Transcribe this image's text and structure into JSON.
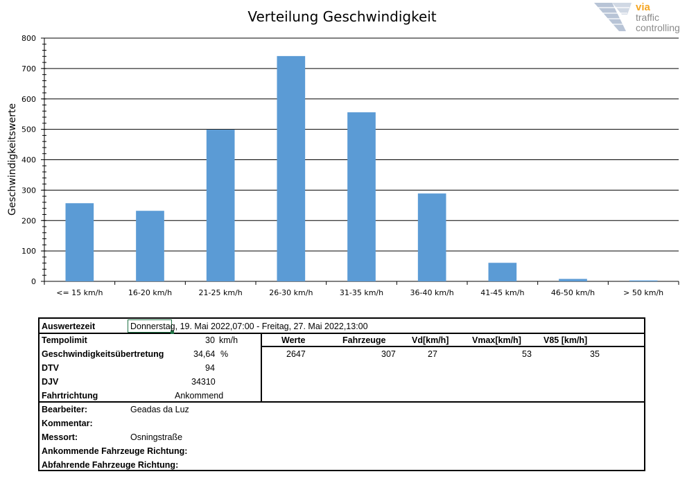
{
  "chart_data": {
    "type": "bar",
    "title": "Verteilung Geschwindigkeit",
    "xlabel": "",
    "ylabel": "Geschwindigkeitswerte",
    "categories": [
      "<= 15 km/h",
      "16-20 km/h",
      "21-25 km/h",
      "26-30 km/h",
      "31-35 km/h",
      "36-40 km/h",
      "41-45 km/h",
      "46-50 km/h",
      "> 50 km/h"
    ],
    "values": [
      257,
      232,
      499,
      741,
      556,
      289,
      61,
      8,
      3
    ],
    "ylim": [
      0,
      800
    ],
    "yticks": [
      0,
      100,
      200,
      300,
      400,
      500,
      600,
      700,
      800
    ],
    "grid": true,
    "bar_color": "#5b9bd5"
  },
  "logo": {
    "line1": "via",
    "line2": "traffic",
    "line3": "controlling",
    "accent": "#f5a623",
    "text_color": "#8a8a8a"
  },
  "info": {
    "auswertezeit_label": "Auswertezeit",
    "auswertezeit_value": "Donnerstag, 19. Mai 2022,07:00  -  Freitag, 27. Mai 2022,13:00",
    "tempolimit_label": "Tempolimit",
    "tempolimit_value": "30",
    "tempolimit_unit": "km/h",
    "uebertretung_label": "Geschwindigkeitsübertretung",
    "uebertretung_value": "34,64",
    "uebertretung_unit": "%",
    "dtv_label": "DTV",
    "dtv_value": "94",
    "djv_label": "DJV",
    "djv_value": "34310",
    "fahrtrichtung_label": "Fahrtrichtung",
    "fahrtrichtung_value": "Ankommend",
    "stats_headers": [
      "Werte",
      "Fahrzeuge",
      "Vd[km/h]",
      "Vmax[km/h]",
      "V85 [km/h]"
    ],
    "stats_values": [
      "2647",
      "307",
      "27",
      "53",
      "35"
    ],
    "bearbeiter_label": "Bearbeiter:",
    "bearbeiter_value": "Geadas da Luz",
    "kommentar_label": "Kommentar:",
    "messort_label": "Messort:",
    "messort_value": "Osningstraße",
    "ankommende_label": "Ankommende Fahrzeuge Richtung:",
    "abfahrende_label": "Abfahrende Fahrzeuge Richtung:"
  }
}
